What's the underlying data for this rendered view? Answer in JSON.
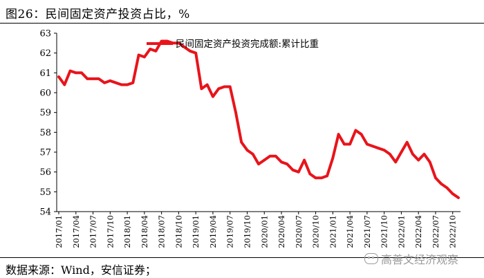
{
  "title": "图26：民间固定资产投资占比，%",
  "source": "数据来源：Wind，安信证券；",
  "watermark": "高善文经济观察",
  "colors": {
    "series": "#e8141b",
    "axis": "#000000"
  },
  "chart_data": {
    "type": "line",
    "ylim": [
      54,
      63
    ],
    "yticks": [
      54,
      55,
      56,
      57,
      58,
      59,
      60,
      61,
      62,
      63
    ],
    "xtick_labels": [
      "2017/01",
      "2017/04",
      "2017/07",
      "2017/10",
      "2018/01",
      "2018/04",
      "2018/07",
      "2018/10",
      "2019/01",
      "2019/04",
      "2019/07",
      "2019/10",
      "2020/01",
      "2020/04",
      "2020/07",
      "2020/10",
      "2021/01",
      "2021/04",
      "2021/07",
      "2021/10",
      "2022/01",
      "2022/04",
      "2022/07",
      "2022/10"
    ],
    "legend_position": "top-center",
    "series": [
      {
        "name": "民间固定资产投资完成额:累计比重",
        "x": [
          "2017/01",
          "2017/02",
          "2017/03",
          "2017/04",
          "2017/05",
          "2017/06",
          "2017/07",
          "2017/08",
          "2017/09",
          "2017/10",
          "2017/11",
          "2017/12",
          "2018/01",
          "2018/02",
          "2018/03",
          "2018/04",
          "2018/05",
          "2018/06",
          "2018/07",
          "2018/08",
          "2018/09",
          "2018/10",
          "2018/11",
          "2018/12",
          "2019/01",
          "2019/02",
          "2019/03",
          "2019/04",
          "2019/05",
          "2019/06",
          "2019/07",
          "2019/08",
          "2019/09",
          "2019/10",
          "2019/11",
          "2019/12",
          "2020/01",
          "2020/02",
          "2020/03",
          "2020/04",
          "2020/05",
          "2020/06",
          "2020/07",
          "2020/08",
          "2020/09",
          "2020/10",
          "2020/11",
          "2020/12",
          "2021/01",
          "2021/02",
          "2021/03",
          "2021/04",
          "2021/05",
          "2021/06",
          "2021/07",
          "2021/08",
          "2021/09",
          "2021/10",
          "2021/11",
          "2021/12",
          "2022/01",
          "2022/02",
          "2022/03",
          "2022/04",
          "2022/05",
          "2022/06",
          "2022/07",
          "2022/08",
          "2022/09",
          "2022/10",
          "2022/11"
        ],
        "values": [
          60.8,
          60.4,
          61.1,
          61.0,
          61.0,
          60.7,
          60.7,
          60.7,
          60.5,
          60.6,
          60.5,
          60.4,
          60.4,
          60.5,
          61.9,
          61.8,
          62.2,
          62.1,
          62.6,
          62.6,
          62.5,
          62.5,
          62.3,
          62.1,
          62.0,
          60.2,
          60.4,
          59.8,
          60.2,
          60.3,
          60.3,
          59.0,
          57.5,
          57.1,
          56.9,
          56.4,
          56.6,
          56.8,
          56.8,
          56.5,
          56.4,
          56.1,
          56.0,
          56.6,
          55.9,
          55.7,
          55.7,
          55.8,
          56.7,
          57.9,
          57.4,
          57.4,
          58.1,
          57.9,
          57.4,
          57.3,
          57.2,
          57.1,
          56.9,
          56.5,
          57.0,
          57.5,
          56.9,
          56.6,
          56.9,
          56.5,
          55.7,
          55.4,
          55.2,
          54.9,
          54.7
        ]
      }
    ]
  }
}
